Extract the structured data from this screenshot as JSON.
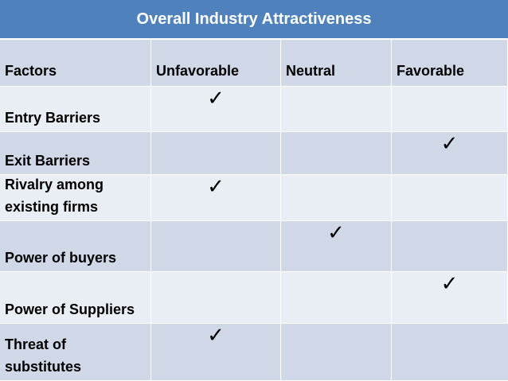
{
  "title": "Overall Industry Attractiveness",
  "columns": [
    "Factors",
    "Unfavorable",
    "Neutral",
    "Favorable"
  ],
  "check_symbol": "✓",
  "rows": [
    {
      "factor": "Entry Barriers",
      "rating": "Unfavorable"
    },
    {
      "factor": "Exit Barriers",
      "rating": "Favorable"
    },
    {
      "factor": "Rivalry among existing firms",
      "rating": "Unfavorable"
    },
    {
      "factor": "Power of buyers",
      "rating": "Neutral"
    },
    {
      "factor": "Power of Suppliers",
      "rating": "Favorable"
    },
    {
      "factor": "Threat  of substitutes",
      "rating": "Unfavorable"
    }
  ],
  "colors": {
    "title_bg": "#4f81bd",
    "title_text": "#ffffff",
    "row_dark": "#d0d8e8",
    "row_light": "#e9edf4"
  }
}
